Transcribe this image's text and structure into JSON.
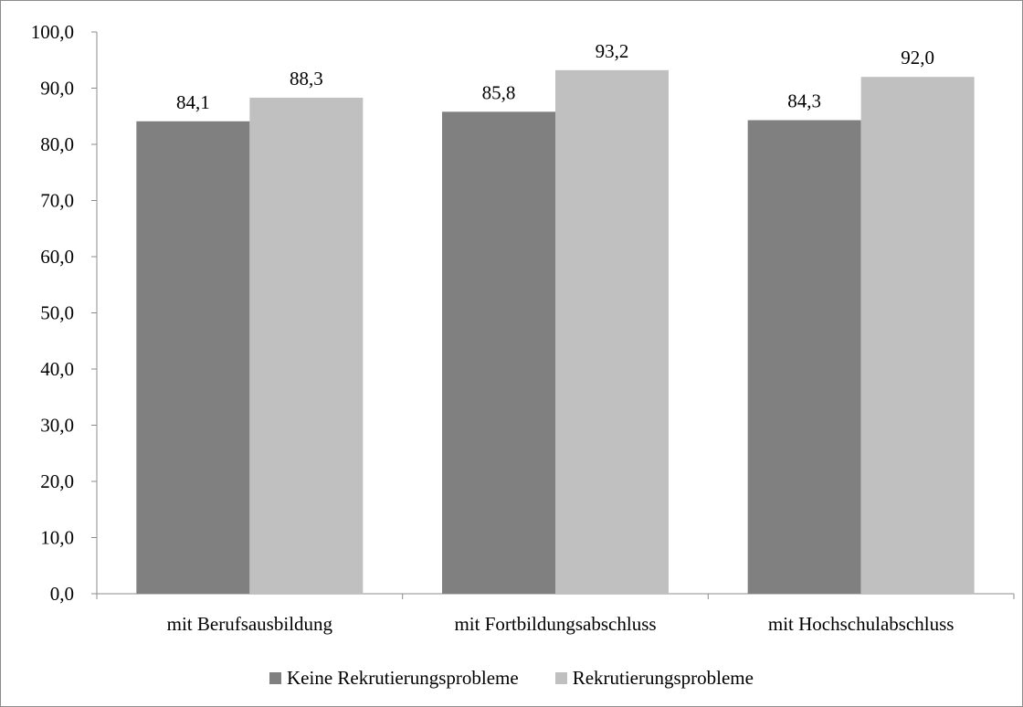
{
  "chart_data": {
    "type": "bar",
    "title": "",
    "xlabel": "",
    "ylabel": "",
    "ylim": [
      0,
      100
    ],
    "yticks": [
      "0,0",
      "10,0",
      "20,0",
      "30,0",
      "40,0",
      "50,0",
      "60,0",
      "70,0",
      "80,0",
      "90,0",
      "100,0"
    ],
    "categories": [
      "mit Berufsausbildung",
      "mit Fortbildungsabschluss",
      "mit Hochschulabschluss"
    ],
    "series": [
      {
        "name": "Keine Rekrutierungsprobleme",
        "color": "#808080",
        "values": [
          84.1,
          85.8,
          84.3
        ],
        "labels": [
          "84,1",
          "85,8",
          "84,3"
        ]
      },
      {
        "name": "Rekrutierungsprobleme",
        "color": "#c0c0c0",
        "values": [
          88.3,
          93.2,
          92.0
        ],
        "labels": [
          "88,3",
          "93,2",
          "92,0"
        ]
      }
    ],
    "grid": false,
    "legend_position": "bottom"
  }
}
